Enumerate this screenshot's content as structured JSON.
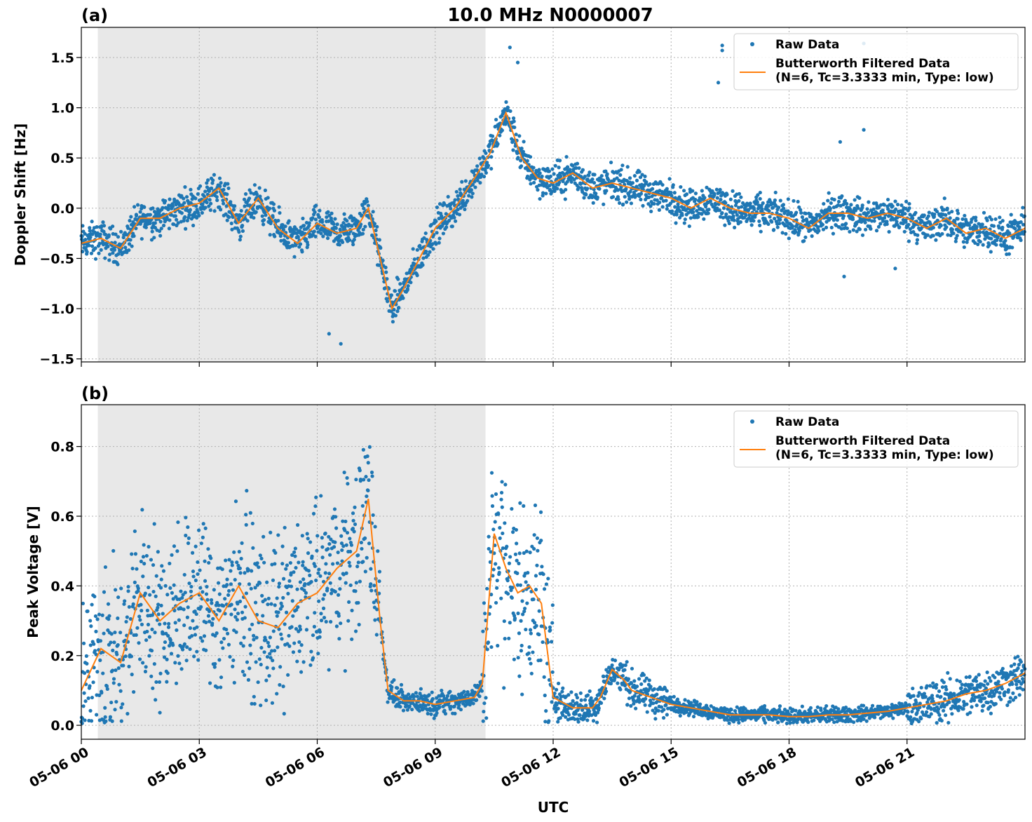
{
  "figure_title": "10.0 MHz N0000007",
  "xlabel": "UTC",
  "colors": {
    "raw": "#1f77b4",
    "filtered": "#ff7f0e",
    "shade": "#e8e8e8",
    "grid": "#b0b0b0"
  },
  "chart_data": [
    {
      "type": "scatter",
      "panel_label": "(a)",
      "ylabel": "Doppler Shift [Hz]",
      "xlim": [
        0,
        24
      ],
      "ylim": [
        -1.53,
        1.8
      ],
      "yticks": [
        -1.5,
        -1.0,
        -0.5,
        0.0,
        0.5,
        1.0,
        1.5
      ],
      "ytick_labels": [
        "−1.5",
        "−1.0",
        "−0.5",
        "0.0",
        "0.5",
        "1.0",
        "1.5"
      ],
      "grid": true,
      "legend_placement": "top-right",
      "legend": [
        "Raw Data",
        "Butterworth Filtered Data",
        "(N=6, Tc=3.3333 min, Type: low)"
      ],
      "shaded_region_hours": [
        0.42,
        10.28
      ],
      "filtered_series": {
        "name": "Butterworth Filtered Data",
        "x": [
          0,
          0.5,
          1,
          1.5,
          2,
          2.5,
          3,
          3.5,
          4,
          4.5,
          5,
          5.5,
          6,
          6.5,
          7,
          7.3,
          7.6,
          7.9,
          8.2,
          8.6,
          9,
          9.5,
          10,
          10.4,
          10.8,
          11.2,
          11.6,
          12,
          12.5,
          13,
          13.5,
          14,
          14.5,
          15,
          15.5,
          16,
          16.5,
          17,
          17.5,
          18,
          18.5,
          19,
          19.5,
          20,
          20.5,
          21,
          21.5,
          22,
          22.5,
          23,
          23.5,
          24
        ],
        "y": [
          -0.35,
          -0.3,
          -0.4,
          -0.1,
          -0.1,
          0.0,
          0.05,
          0.2,
          -0.15,
          0.1,
          -0.2,
          -0.35,
          -0.15,
          -0.25,
          -0.2,
          0.0,
          -0.5,
          -1.0,
          -0.8,
          -0.5,
          -0.2,
          0.0,
          0.3,
          0.55,
          0.95,
          0.5,
          0.3,
          0.25,
          0.35,
          0.2,
          0.25,
          0.2,
          0.15,
          0.1,
          0.0,
          0.1,
          0.0,
          -0.05,
          -0.05,
          -0.1,
          -0.2,
          -0.05,
          -0.05,
          -0.1,
          -0.05,
          -0.1,
          -0.2,
          -0.1,
          -0.25,
          -0.2,
          -0.3,
          -0.2
        ]
      },
      "raw_series": {
        "name": "Raw Data",
        "spread": 0.16,
        "outliers": [
          {
            "x": 16.3,
            "y": 1.62
          },
          {
            "x": 16.3,
            "y": 1.57
          },
          {
            "x": 16.2,
            "y": 1.25
          },
          {
            "x": 19.9,
            "y": 1.64
          },
          {
            "x": 19.9,
            "y": 0.78
          },
          {
            "x": 19.3,
            "y": 0.66
          },
          {
            "x": 10.9,
            "y": 1.6
          },
          {
            "x": 11.1,
            "y": 1.45
          },
          {
            "x": 6.6,
            "y": -1.35
          },
          {
            "x": 6.3,
            "y": -1.25
          },
          {
            "x": 19.4,
            "y": -0.68
          },
          {
            "x": 20.7,
            "y": -0.6
          }
        ]
      }
    },
    {
      "type": "scatter",
      "panel_label": "(b)",
      "ylabel": "Peak Voltage [V]",
      "xlim": [
        0,
        24
      ],
      "ylim": [
        -0.04,
        0.92
      ],
      "yticks": [
        0.0,
        0.2,
        0.4,
        0.6,
        0.8
      ],
      "ytick_labels": [
        "0.0",
        "0.2",
        "0.4",
        "0.6",
        "0.8"
      ],
      "grid": true,
      "legend_placement": "top-right",
      "legend": [
        "Raw Data",
        "Butterworth Filtered Data",
        "(N=6, Tc=3.3333 min, Type: low)"
      ],
      "shaded_region_hours": [
        0.42,
        10.28
      ],
      "filtered_series": {
        "name": "Butterworth Filtered Data",
        "x": [
          0,
          0.5,
          1,
          1.5,
          2,
          2.5,
          3,
          3.5,
          4,
          4.5,
          5,
          5.5,
          6,
          6.5,
          7,
          7.3,
          7.6,
          7.8,
          8.2,
          8.6,
          9,
          9.5,
          10,
          10.2,
          10.5,
          10.8,
          11.1,
          11.4,
          11.7,
          12,
          12.5,
          13,
          13.2,
          13.5,
          13.8,
          14,
          14.5,
          15,
          15.5,
          16,
          16.5,
          17,
          17.5,
          18,
          18.5,
          19,
          19.5,
          20,
          20.5,
          21,
          21.5,
          22,
          22.5,
          23,
          23.5,
          24
        ],
        "y": [
          0.1,
          0.22,
          0.18,
          0.38,
          0.3,
          0.35,
          0.38,
          0.3,
          0.4,
          0.3,
          0.28,
          0.35,
          0.38,
          0.45,
          0.5,
          0.65,
          0.3,
          0.1,
          0.07,
          0.07,
          0.06,
          0.07,
          0.08,
          0.12,
          0.55,
          0.45,
          0.38,
          0.4,
          0.35,
          0.08,
          0.05,
          0.05,
          0.08,
          0.16,
          0.13,
          0.1,
          0.08,
          0.06,
          0.05,
          0.04,
          0.03,
          0.03,
          0.03,
          0.025,
          0.025,
          0.03,
          0.03,
          0.035,
          0.04,
          0.05,
          0.06,
          0.07,
          0.09,
          0.1,
          0.12,
          0.15
        ]
      },
      "raw_series": {
        "name": "Raw Data",
        "spread_by_hour": [
          {
            "x0": 0,
            "x1": 7.6,
            "spread": 0.22
          },
          {
            "x0": 7.6,
            "x1": 10.2,
            "spread": 0.03
          },
          {
            "x0": 10.2,
            "x1": 12.0,
            "spread": 0.25
          },
          {
            "x0": 12.0,
            "x1": 15.0,
            "spread": 0.05
          },
          {
            "x0": 15.0,
            "x1": 21.0,
            "spread": 0.02
          },
          {
            "x0": 21.0,
            "x1": 24.0,
            "spread": 0.06
          }
        ]
      }
    }
  ],
  "xticks": {
    "values": [
      0,
      3,
      6,
      9,
      12,
      15,
      18,
      21
    ],
    "labels": [
      "05-06 00",
      "05-06 03",
      "05-06 06",
      "05-06 09",
      "05-06 12",
      "05-06 15",
      "05-06 18",
      "05-06 21"
    ]
  }
}
